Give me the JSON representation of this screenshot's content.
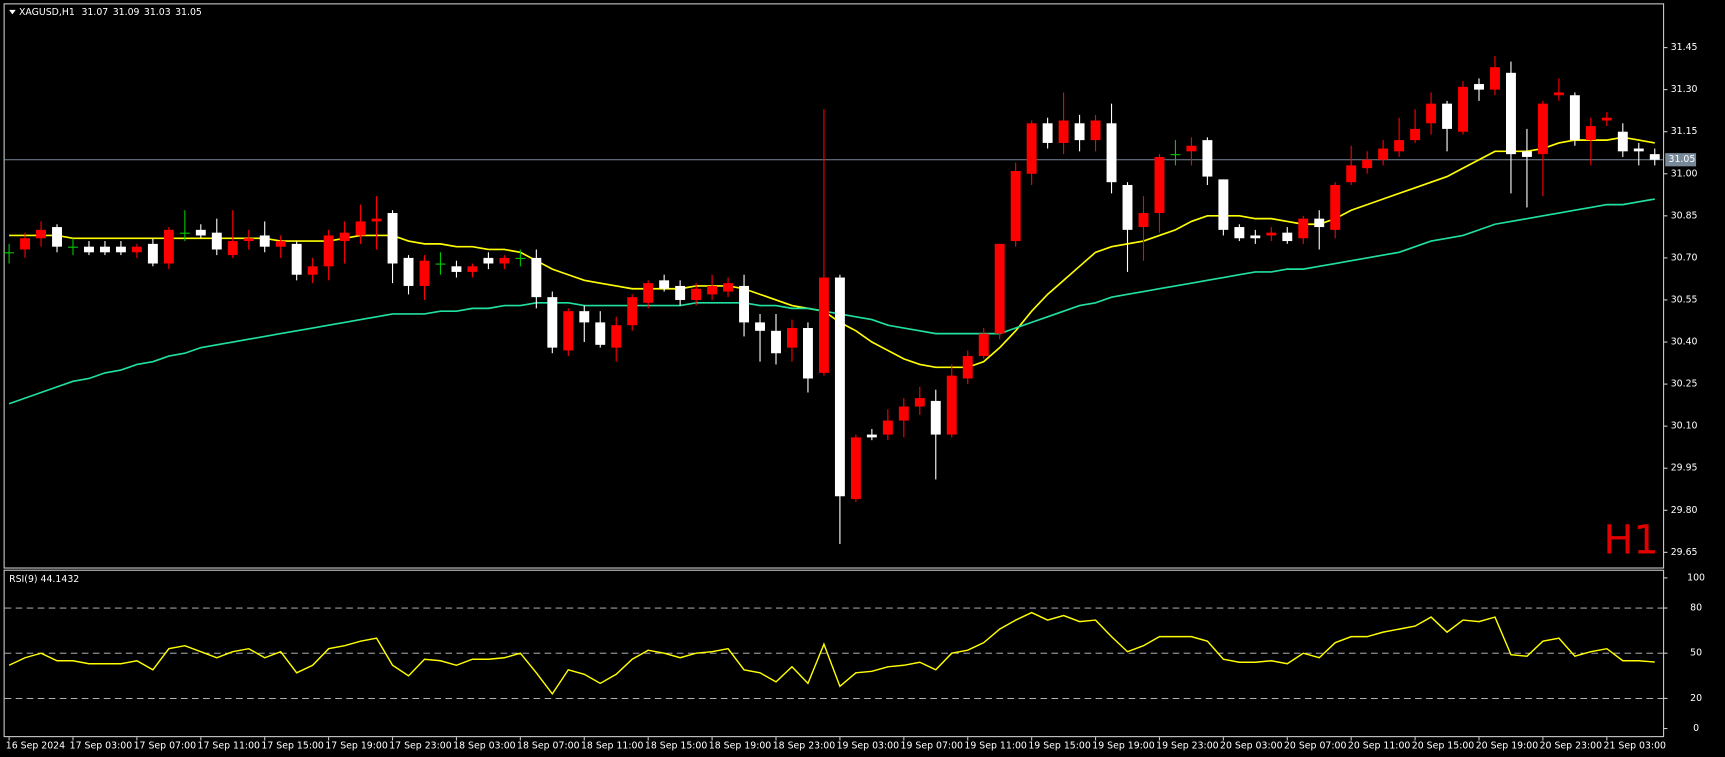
{
  "chart_data": {
    "type": "candlestick",
    "symbol": "XAGUSD,H1",
    "header_prices": [
      31.07,
      31.09,
      31.03,
      31.05
    ],
    "watermark": "H1",
    "categories": [
      "16 Sep 2024",
      null,
      null,
      null,
      "17 Sep 03:00",
      null,
      null,
      null,
      "17 Sep 07:00",
      null,
      null,
      null,
      "17 Sep 11:00",
      null,
      null,
      null,
      "17 Sep 15:00",
      null,
      null,
      null,
      "17 Sep 19:00",
      null,
      null,
      null,
      "17 Sep 23:00",
      null,
      null,
      null,
      "18 Sep 03:00",
      null,
      null,
      null,
      "18 Sep 07:00",
      null,
      null,
      null,
      "18 Sep 11:00",
      null,
      null,
      null,
      "18 Sep 15:00",
      null,
      null,
      null,
      "18 Sep 19:00",
      null,
      null,
      null,
      "18 Sep 23:00",
      null,
      null,
      null,
      "19 Sep 03:00",
      null,
      null,
      null,
      "19 Sep 07:00",
      null,
      null,
      null,
      "19 Sep 11:00",
      null,
      null,
      null,
      "19 Sep 15:00",
      null,
      null,
      null,
      "19 Sep 19:00",
      null,
      null,
      null,
      "19 Sep 23:00",
      null,
      null,
      null,
      "20 Sep 03:00",
      null,
      null,
      null,
      "20 Sep 07:00",
      null,
      null,
      null,
      "20 Sep 11:00",
      null,
      null,
      null,
      "20 Sep 15:00",
      null,
      null,
      null,
      "20 Sep 19:00",
      null,
      null,
      null,
      "20 Sep 23:00",
      null,
      null,
      null,
      "21 Sep 03:00",
      null,
      null,
      null
    ],
    "open": [
      30.72,
      30.73,
      30.77,
      30.81,
      30.74,
      30.74,
      30.74,
      30.74,
      30.72,
      30.75,
      30.68,
      30.79,
      30.8,
      30.79,
      30.71,
      30.76,
      30.78,
      30.74,
      30.75,
      30.64,
      30.67,
      30.76,
      30.78,
      30.83,
      30.86,
      30.7,
      30.6,
      30.68,
      30.67,
      30.65,
      30.7,
      30.68,
      30.7,
      30.7,
      30.56,
      30.37,
      30.51,
      30.47,
      30.38,
      30.46,
      30.54,
      30.62,
      30.6,
      30.55,
      30.57,
      30.58,
      30.6,
      30.47,
      30.44,
      30.38,
      30.45,
      30.29,
      30.63,
      29.84,
      30.07,
      30.07,
      30.12,
      30.17,
      30.19,
      30.07,
      30.27,
      30.35,
      30.43,
      30.76,
      31.0,
      31.18,
      31.11,
      31.18,
      31.12,
      31.18,
      30.96,
      30.81,
      30.86,
      31.07,
      31.08,
      31.12,
      30.98,
      30.81,
      30.78,
      30.78,
      30.79,
      30.77,
      30.84,
      30.8,
      30.97,
      31.02,
      31.05,
      31.08,
      31.12,
      31.18,
      31.25,
      31.15,
      31.32,
      31.3,
      31.36,
      31.08,
      31.07,
      31.28,
      31.28,
      31.12,
      31.19,
      31.15,
      31.09,
      31.07
    ],
    "high": [
      30.75,
      30.79,
      30.83,
      30.82,
      30.77,
      30.76,
      30.76,
      30.76,
      30.75,
      30.77,
      30.81,
      30.87,
      30.82,
      30.84,
      30.87,
      30.8,
      30.83,
      30.78,
      30.76,
      30.7,
      30.8,
      30.83,
      30.89,
      30.92,
      30.87,
      30.71,
      30.71,
      30.72,
      30.69,
      30.68,
      30.72,
      30.71,
      30.73,
      30.73,
      30.58,
      30.52,
      30.53,
      30.51,
      30.49,
      30.57,
      30.62,
      30.64,
      30.62,
      30.61,
      30.64,
      30.63,
      30.64,
      30.5,
      30.5,
      30.48,
      30.47,
      31.23,
      30.64,
      30.07,
      30.09,
      30.16,
      30.2,
      30.24,
      30.23,
      30.32,
      30.37,
      30.45,
      30.75,
      31.04,
      31.19,
      31.2,
      31.29,
      31.21,
      31.21,
      31.25,
      30.97,
      30.92,
      31.07,
      31.12,
      31.13,
      31.13,
      30.98,
      30.82,
      30.8,
      30.81,
      30.81,
      30.85,
      30.87,
      30.97,
      31.1,
      31.08,
      31.12,
      31.2,
      31.23,
      31.29,
      31.26,
      31.33,
      31.34,
      31.42,
      31.4,
      31.16,
      31.26,
      31.34,
      31.29,
      31.2,
      31.22,
      31.18,
      31.11,
      31.09
    ],
    "low": [
      30.68,
      30.7,
      30.74,
      30.72,
      30.71,
      30.71,
      30.71,
      30.71,
      30.7,
      30.67,
      30.66,
      30.76,
      30.77,
      30.71,
      30.7,
      30.73,
      30.72,
      30.7,
      30.62,
      30.61,
      30.62,
      30.68,
      30.75,
      30.73,
      30.61,
      30.57,
      30.55,
      30.64,
      30.63,
      30.63,
      30.66,
      30.66,
      30.67,
      30.52,
      30.36,
      30.35,
      30.4,
      30.38,
      30.33,
      30.44,
      30.52,
      30.58,
      30.53,
      30.53,
      30.55,
      30.56,
      30.42,
      30.33,
      30.32,
      30.33,
      30.22,
      30.28,
      29.68,
      29.83,
      30.05,
      30.05,
      30.06,
      30.14,
      29.91,
      30.06,
      30.25,
      30.34,
      30.41,
      30.74,
      30.96,
      31.09,
      31.07,
      31.08,
      31.08,
      30.93,
      30.65,
      30.69,
      30.79,
      31.03,
      31.03,
      30.96,
      30.78,
      30.76,
      30.75,
      30.76,
      30.75,
      30.75,
      30.73,
      30.77,
      30.96,
      31.0,
      31.03,
      31.06,
      31.11,
      31.14,
      31.08,
      31.14,
      31.26,
      31.28,
      30.93,
      30.88,
      30.92,
      31.26,
      31.1,
      31.03,
      31.17,
      31.06,
      31.03,
      31.03
    ],
    "close": [
      30.72,
      30.77,
      30.8,
      30.74,
      30.74,
      30.72,
      30.72,
      30.72,
      30.74,
      30.68,
      30.8,
      30.79,
      30.78,
      30.73,
      30.76,
      30.77,
      30.74,
      30.76,
      30.64,
      30.67,
      30.78,
      30.79,
      30.83,
      30.84,
      30.68,
      30.6,
      30.69,
      30.68,
      30.65,
      30.67,
      30.68,
      30.7,
      30.7,
      30.56,
      30.38,
      30.51,
      30.47,
      30.39,
      30.46,
      30.56,
      30.61,
      30.59,
      30.55,
      30.59,
      30.6,
      30.61,
      30.47,
      30.44,
      30.36,
      30.45,
      30.27,
      30.63,
      29.85,
      30.06,
      30.06,
      30.12,
      30.17,
      30.2,
      30.07,
      30.28,
      30.35,
      30.43,
      30.75,
      31.01,
      31.18,
      31.11,
      31.19,
      31.12,
      31.19,
      30.97,
      30.8,
      30.86,
      31.06,
      31.07,
      31.1,
      30.99,
      30.8,
      30.77,
      30.77,
      30.79,
      30.76,
      30.84,
      30.81,
      30.96,
      31.03,
      31.05,
      31.09,
      31.12,
      31.16,
      31.25,
      31.16,
      31.31,
      31.3,
      31.38,
      31.07,
      31.06,
      31.25,
      31.29,
      31.12,
      31.17,
      31.2,
      31.08,
      31.08,
      31.05
    ],
    "up_color": "#ff0000",
    "down_color": "#ffffff",
    "doji_color": "#00c800",
    "moving_averages": [
      {
        "color": "#ffff00",
        "values": [
          30.78,
          30.78,
          30.78,
          30.78,
          30.77,
          30.77,
          30.77,
          30.77,
          30.77,
          30.77,
          30.77,
          30.77,
          30.77,
          30.77,
          30.77,
          30.77,
          30.77,
          30.76,
          30.76,
          30.76,
          30.76,
          30.77,
          30.78,
          30.78,
          30.78,
          30.76,
          30.75,
          30.75,
          30.74,
          30.74,
          30.73,
          30.73,
          30.72,
          30.69,
          30.66,
          30.64,
          30.62,
          30.61,
          30.6,
          30.59,
          30.59,
          30.59,
          30.59,
          30.6,
          30.6,
          30.6,
          30.59,
          30.57,
          30.55,
          30.53,
          30.52,
          30.51,
          30.47,
          30.44,
          30.4,
          30.37,
          30.34,
          30.32,
          30.31,
          30.31,
          30.31,
          30.33,
          30.38,
          30.44,
          30.51,
          30.57,
          30.62,
          30.67,
          30.72,
          30.74,
          30.75,
          30.76,
          30.78,
          30.8,
          30.83,
          30.85,
          30.85,
          30.85,
          30.84,
          30.84,
          30.83,
          30.82,
          30.82,
          30.84,
          30.87,
          30.89,
          30.91,
          30.93,
          30.95,
          30.97,
          30.99,
          31.02,
          31.05,
          31.08,
          31.08,
          31.08,
          31.09,
          31.11,
          31.12,
          31.12,
          31.12,
          31.13,
          31.12,
          31.11
        ]
      },
      {
        "color": "#20e0a0",
        "values": [
          30.18,
          30.2,
          30.22,
          30.24,
          30.26,
          30.27,
          30.29,
          30.3,
          30.32,
          30.33,
          30.35,
          30.36,
          30.38,
          30.39,
          30.4,
          30.41,
          30.42,
          30.43,
          30.44,
          30.45,
          30.46,
          30.47,
          30.48,
          30.49,
          30.5,
          30.5,
          30.5,
          30.51,
          30.51,
          30.52,
          30.52,
          30.53,
          30.53,
          30.54,
          30.54,
          30.54,
          30.53,
          30.53,
          30.53,
          30.53,
          30.53,
          30.53,
          30.53,
          30.54,
          30.54,
          30.54,
          30.54,
          30.53,
          30.53,
          30.52,
          30.52,
          30.51,
          30.5,
          30.49,
          30.48,
          30.46,
          30.45,
          30.44,
          30.43,
          30.43,
          30.43,
          30.43,
          30.43,
          30.45,
          30.47,
          30.49,
          30.51,
          30.53,
          30.54,
          30.56,
          30.57,
          30.58,
          30.59,
          30.6,
          30.61,
          30.62,
          30.63,
          30.64,
          30.65,
          30.65,
          30.66,
          30.66,
          30.67,
          30.68,
          30.69,
          30.7,
          30.71,
          30.72,
          30.74,
          30.76,
          30.77,
          30.78,
          30.8,
          30.82,
          30.83,
          30.84,
          30.85,
          30.86,
          30.87,
          30.88,
          30.89,
          30.89,
          30.9,
          30.91
        ]
      }
    ],
    "current_price": 31.05,
    "current_price_color": "#778899",
    "ylim": [
      29.6,
      31.6
    ],
    "yticks": [
      29.65,
      {
        "value": 29.8,
        "label": "29.80"
      },
      29.95,
      {
        "value": 30.1,
        "label": "30.10"
      },
      30.25,
      {
        "value": 30.4,
        "label": "30.40"
      },
      30.55,
      {
        "value": 30.7,
        "label": "30.70"
      },
      30.85,
      {
        "value": 31.0,
        "label": "31.00"
      },
      31.15,
      {
        "value": 31.3,
        "label": "31.30"
      },
      31.45
    ],
    "rsi": {
      "label": "RSI(9) 44.1432",
      "color": "#ffff00",
      "ylim": [
        -5,
        104
      ],
      "yticks": [
        0,
        20,
        50,
        80,
        100
      ],
      "levels": [
        20,
        50,
        80
      ],
      "values": [
        42,
        47,
        50,
        45,
        45,
        43,
        43,
        43,
        45,
        39,
        53,
        55,
        51,
        47,
        51,
        53,
        47,
        51,
        37,
        42,
        53,
        55,
        58,
        60,
        42,
        35,
        46,
        45,
        42,
        46,
        46,
        47,
        50,
        37,
        23,
        39,
        36,
        30,
        36,
        46,
        52,
        50,
        47,
        50,
        51,
        53,
        39,
        37,
        31,
        41,
        30,
        56,
        28,
        37,
        38,
        41,
        42,
        44,
        39,
        50,
        52,
        57,
        66,
        72,
        77,
        72,
        75,
        71,
        72,
        61,
        51,
        55,
        61,
        61,
        61,
        58,
        46,
        44,
        44,
        45,
        43,
        50,
        47,
        57,
        61,
        61,
        64,
        66,
        68,
        74,
        64,
        72,
        71,
        74,
        49,
        48,
        58,
        60,
        48,
        51,
        53,
        45,
        45,
        44.1432
      ]
    }
  }
}
